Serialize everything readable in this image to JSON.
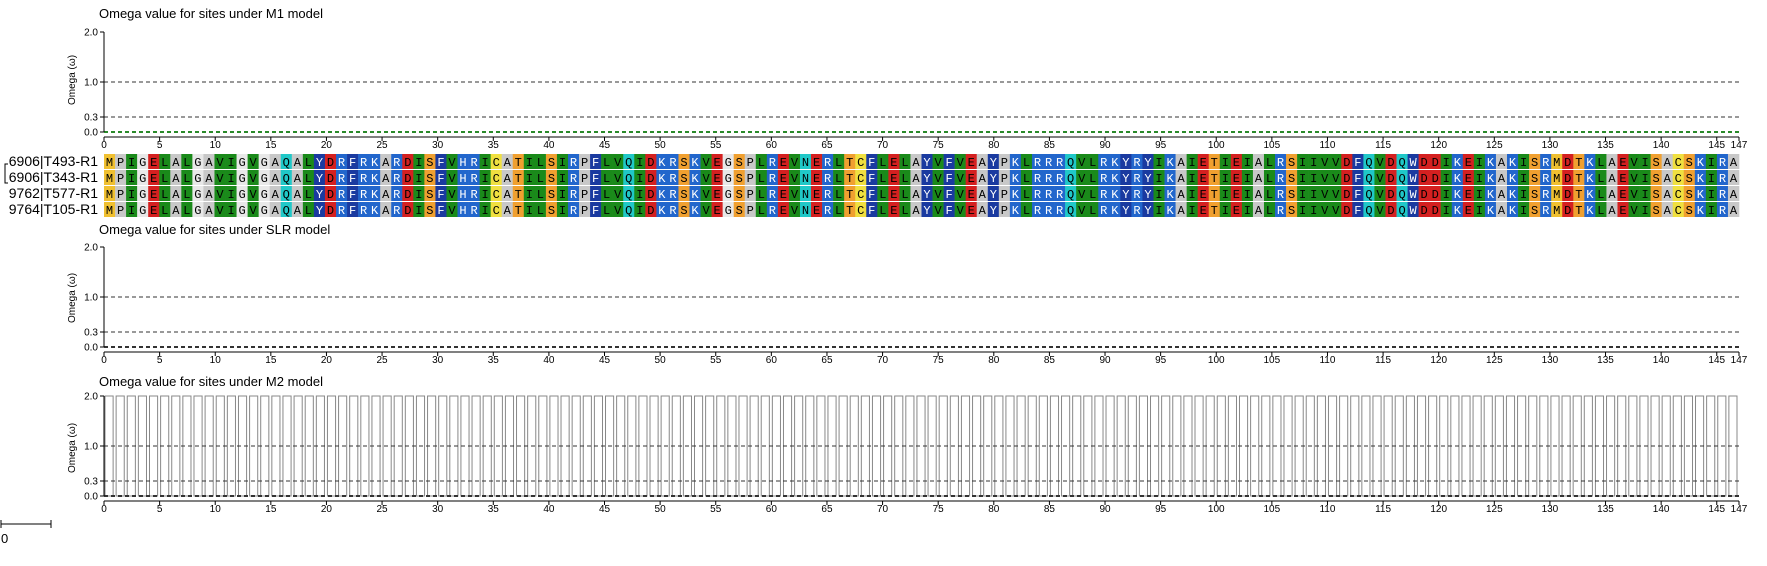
{
  "sequence_names": [
    "6906|T493-R1",
    "6906|T343-R1",
    "9762|T577-R1",
    "9764|T105-R1"
  ],
  "sequence": "MPIGELALGAVIGVGAQALYDRFRKARDISFVHRICATILSIRPFLVQIDKRSKVEGSPLREVNERLTCFLELAYVFVEAYPKLRRRQVLRKYRYIKAIETIEIALRSIIVVDFQVDQWDDIKEIKAKISRMDTKLAEVISACSKIRA",
  "scale_label": "0",
  "colors": {
    "M": "#f0c030",
    "P": "#c8c8c8",
    "I": "#1a8a1a",
    "G": "#e8e8e8",
    "E": "#d42020",
    "L": "#1a8a1a",
    "A": "#c8c8c8",
    "V": "#1a8a1a",
    "Q": "#20c8c8",
    "Y": "#1a3aa0",
    "D": "#d42020",
    "R": "#2266cc",
    "F": "#1a3aa0",
    "K": "#2266cc",
    "S": "#f0a030",
    "H": "#2266cc",
    "C": "#f0e040",
    "T": "#f0a030",
    "N": "#20c8c8",
    "W": "#1a3aa0",
    "dark_text": [
      "Y",
      "F",
      "W",
      "R",
      "K",
      "H"
    ],
    "axis": "#000000",
    "zero_line": "#2a8a2a",
    "bar": "#888888"
  },
  "chart_data": [
    {
      "type": "bar",
      "title": "Omega value for sites under M1 model",
      "ylabel": "Omega (ω)",
      "yticks": [
        "2.0",
        "1.0",
        "0.3",
        "0.0"
      ],
      "ytick_values": [
        2.0,
        1.0,
        0.3,
        0.0
      ],
      "ylim": [
        0,
        2.0
      ],
      "reference_lines": [
        1.0,
        0.3,
        0.0
      ],
      "xlim": [
        0,
        147
      ],
      "xticks": [
        0,
        5,
        10,
        15,
        20,
        25,
        30,
        35,
        40,
        45,
        50,
        55,
        60,
        65,
        70,
        75,
        80,
        85,
        90,
        95,
        100,
        105,
        110,
        115,
        120,
        125,
        130,
        135,
        140,
        145,
        147
      ],
      "values_description": "all sites 0",
      "values": []
    },
    {
      "type": "bar",
      "title": "Omega value for sites under SLR model",
      "ylabel": "Omega (ω)",
      "yticks": [
        "2.0",
        "1.0",
        "0.3",
        "0.0"
      ],
      "ytick_values": [
        2.0,
        1.0,
        0.3,
        0.0
      ],
      "ylim": [
        0,
        2.0
      ],
      "reference_lines": [
        1.0,
        0.3,
        0.0
      ],
      "xlim": [
        0,
        147
      ],
      "xticks": [
        0,
        5,
        10,
        15,
        20,
        25,
        30,
        35,
        40,
        45,
        50,
        55,
        60,
        65,
        70,
        75,
        80,
        85,
        90,
        95,
        100,
        105,
        110,
        115,
        120,
        125,
        130,
        135,
        140,
        145,
        147
      ],
      "values": []
    },
    {
      "type": "bar",
      "title": "Omega value for sites under M2 model",
      "ylabel": "Omega (ω)",
      "yticks": [
        "2.0",
        "1.0",
        "0.3",
        "0.0"
      ],
      "ytick_values": [
        2.0,
        1.0,
        0.3,
        0.0
      ],
      "ylim": [
        0,
        2.0
      ],
      "reference_lines": [
        1.0,
        0.3,
        0.0
      ],
      "xlim": [
        0,
        147
      ],
      "xticks": [
        0,
        5,
        10,
        15,
        20,
        25,
        30,
        35,
        40,
        45,
        50,
        55,
        60,
        65,
        70,
        75,
        80,
        85,
        90,
        95,
        100,
        105,
        110,
        115,
        120,
        125,
        130,
        135,
        140,
        145,
        147
      ],
      "bar_value_all_sites": 2.0
    }
  ]
}
